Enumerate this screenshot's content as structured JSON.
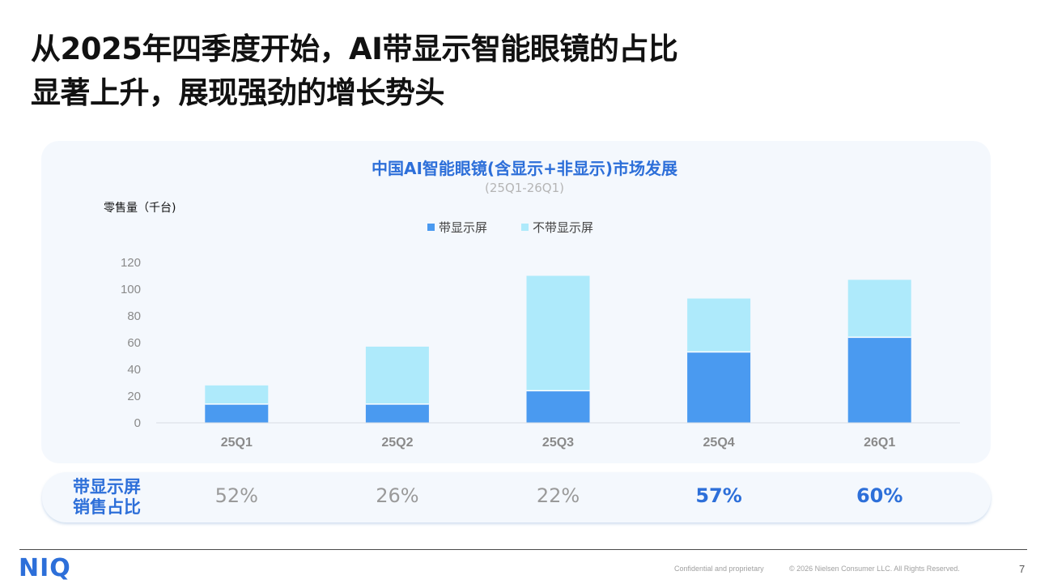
{
  "headline": {
    "line1": "从2025年四季度开始，AI带显示智能眼镜的占比",
    "line2": "显著上升，展现强劲的增长势头"
  },
  "chart_data": {
    "type": "bar",
    "stacked": true,
    "title": "中国AI智能眼镜(含显示+非显示)市场发展",
    "subtitle": "(25Q1-26Q1)",
    "ylabel": "零售量（千台)",
    "xlabel": "",
    "categories": [
      "25Q1",
      "25Q2",
      "25Q3",
      "25Q4",
      "26Q1"
    ],
    "series": [
      {
        "name": "带显示屏",
        "color": "#4a9af0",
        "values": [
          14,
          14,
          24,
          53,
          64
        ]
      },
      {
        "name": "不带显示屏",
        "color": "#aeeafb",
        "values": [
          14,
          43,
          86,
          40,
          43
        ]
      }
    ],
    "ylim": [
      0,
      120
    ],
    "yticks": [
      0,
      20,
      40,
      60,
      80,
      100,
      120
    ],
    "grid": false,
    "legend_position": "top-center"
  },
  "share_row": {
    "label_line1": "带显示屏",
    "label_line2": "销售占比",
    "values": [
      {
        "text": "52%",
        "emphasized": false
      },
      {
        "text": "26%",
        "emphasized": false
      },
      {
        "text": "22%",
        "emphasized": false
      },
      {
        "text": "57%",
        "emphasized": true
      },
      {
        "text": "60%",
        "emphasized": true
      }
    ]
  },
  "footer": {
    "logo": "NIQ",
    "confidential": "Confidential and proprietary",
    "copyright": "© 2026 Nielsen Consumer LLC. All Rights Reserved.",
    "page_number": "7"
  }
}
